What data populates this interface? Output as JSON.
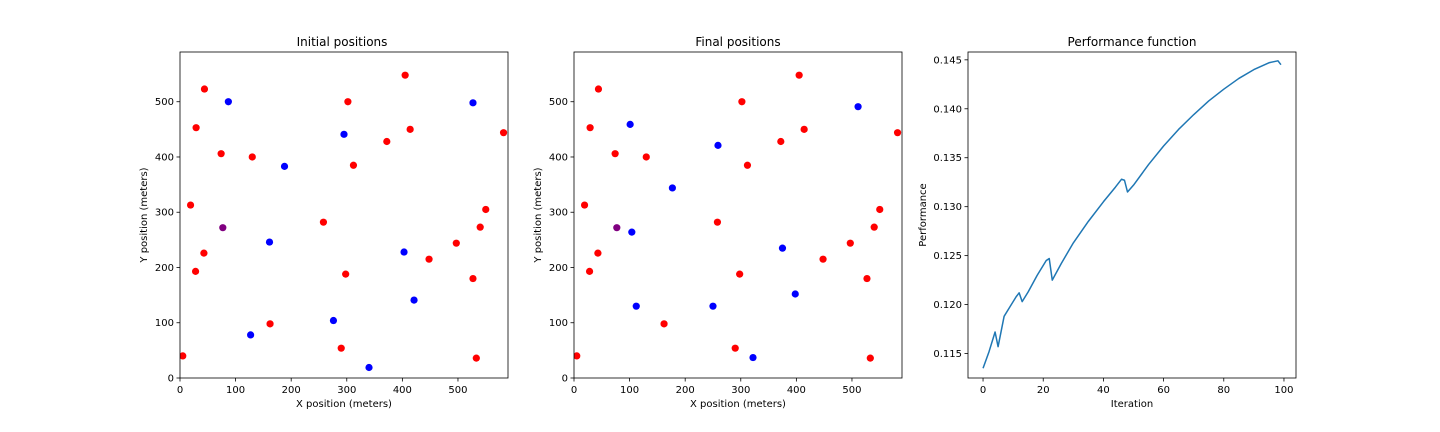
{
  "chart_data": [
    {
      "type": "scatter",
      "title": "Initial positions",
      "xlabel": "X position (meters)",
      "ylabel": "Y position (meters)",
      "xlim": [
        0,
        590
      ],
      "ylim": [
        0,
        590
      ],
      "xticks": [
        0,
        100,
        200,
        300,
        400,
        500
      ],
      "yticks": [
        0,
        100,
        200,
        300,
        400,
        500
      ],
      "grid": false,
      "series": [
        {
          "color": "#ff0000",
          "points": [
            [
              5,
              40
            ],
            [
              44,
              523
            ],
            [
              29,
              453
            ],
            [
              74,
              406
            ],
            [
              130,
              400
            ],
            [
              19,
              313
            ],
            [
              43,
              226
            ],
            [
              28,
              193
            ],
            [
              162,
              98
            ],
            [
              258,
              282
            ],
            [
              290,
              54
            ],
            [
              298,
              188
            ],
            [
              302,
              500
            ],
            [
              312,
              385
            ],
            [
              372,
              428
            ],
            [
              405,
              548
            ],
            [
              414,
              450
            ],
            [
              448,
              215
            ],
            [
              497,
              244
            ],
            [
              527,
              180
            ],
            [
              540,
              273
            ],
            [
              550,
              305
            ],
            [
              533,
              36
            ],
            [
              582,
              444
            ]
          ]
        },
        {
          "color": "#0000ff",
          "points": [
            [
              87,
              500
            ],
            [
              188,
              383
            ],
            [
              161,
              246
            ],
            [
              127,
              78
            ],
            [
              276,
              104
            ],
            [
              295,
              441
            ],
            [
              340,
              19
            ],
            [
              403,
              228
            ],
            [
              421,
              141
            ],
            [
              527,
              498
            ]
          ]
        },
        {
          "color": "#800080",
          "points": [
            [
              77,
              272
            ]
          ]
        }
      ]
    },
    {
      "type": "scatter",
      "title": "Final positions",
      "xlabel": "X position (meters)",
      "ylabel": "Y position (meters)",
      "xlim": [
        0,
        590
      ],
      "ylim": [
        0,
        590
      ],
      "xticks": [
        0,
        100,
        200,
        300,
        400,
        500
      ],
      "yticks": [
        0,
        100,
        200,
        300,
        400,
        500
      ],
      "grid": false,
      "series": [
        {
          "color": "#ff0000",
          "points": [
            [
              5,
              40
            ],
            [
              44,
              523
            ],
            [
              29,
              453
            ],
            [
              74,
              406
            ],
            [
              130,
              400
            ],
            [
              19,
              313
            ],
            [
              43,
              226
            ],
            [
              28,
              193
            ],
            [
              162,
              98
            ],
            [
              258,
              282
            ],
            [
              290,
              54
            ],
            [
              298,
              188
            ],
            [
              302,
              500
            ],
            [
              312,
              385
            ],
            [
              372,
              428
            ],
            [
              405,
              548
            ],
            [
              414,
              450
            ],
            [
              448,
              215
            ],
            [
              497,
              244
            ],
            [
              527,
              180
            ],
            [
              540,
              273
            ],
            [
              550,
              305
            ],
            [
              533,
              36
            ],
            [
              582,
              444
            ]
          ]
        },
        {
          "color": "#0000ff",
          "points": [
            [
              101,
              459
            ],
            [
              259,
              421
            ],
            [
              177,
              344
            ],
            [
              104,
              264
            ],
            [
              112,
              130
            ],
            [
              250,
              130
            ],
            [
              322,
              37
            ],
            [
              375,
              235
            ],
            [
              398,
              152
            ],
            [
              511,
              491
            ]
          ]
        },
        {
          "color": "#800080",
          "points": [
            [
              77,
              272
            ]
          ]
        }
      ]
    },
    {
      "type": "line",
      "title": "Performance function",
      "xlabel": "Iteration",
      "ylabel": "Performance",
      "xlim": [
        -5,
        104
      ],
      "ylim": [
        0.1125,
        0.1458
      ],
      "xticks": [
        0,
        20,
        40,
        60,
        80,
        100
      ],
      "yticks": [
        0.115,
        0.12,
        0.125,
        0.13,
        0.135,
        0.14,
        0.145
      ],
      "ytick_labels": [
        "0.115",
        "0.120",
        "0.125",
        "0.130",
        "0.135",
        "0.140",
        "0.145"
      ],
      "grid": false,
      "series": [
        {
          "color": "#1f77b4",
          "x": [
            0,
            2,
            4,
            5,
            7,
            9,
            11,
            12,
            13,
            15,
            18,
            21,
            22,
            23,
            26,
            30,
            35,
            40,
            44,
            46,
            47,
            48,
            50,
            55,
            60,
            65,
            70,
            75,
            80,
            85,
            90,
            95,
            98,
            99
          ],
          "y": [
            0.1135,
            0.1152,
            0.1172,
            0.1157,
            0.1188,
            0.1198,
            0.1208,
            0.1212,
            0.1203,
            0.1213,
            0.123,
            0.1245,
            0.1247,
            0.1225,
            0.1242,
            0.1263,
            0.1285,
            0.1305,
            0.132,
            0.1328,
            0.1327,
            0.1315,
            0.1322,
            0.1343,
            0.1362,
            0.1379,
            0.1394,
            0.1408,
            0.142,
            0.1431,
            0.144,
            0.1447,
            0.1449,
            0.1445
          ]
        }
      ]
    }
  ]
}
